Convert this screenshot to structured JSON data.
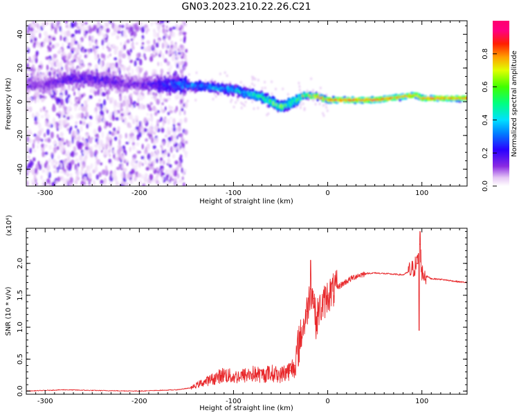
{
  "title": "GN03.2023.210.22.26.C21",
  "colorbar": {
    "label": "Normalized spectral amplitude",
    "ticks": [
      "0.0",
      "0.2",
      "0.4",
      "0.6",
      "0.8"
    ],
    "tick_values": [
      0.0,
      0.2,
      0.4,
      0.6,
      0.8
    ],
    "range": [
      0,
      1
    ],
    "colormap": "rainbow (white-purple-blue-cyan-green-yellow-red-magenta)"
  },
  "chart_data": [
    {
      "type": "heatmap",
      "xlabel": "Height of straight line (km)",
      "ylabel": "Frequency (Hz)",
      "xlim": [
        -320,
        148
      ],
      "ylim": [
        -50,
        48
      ],
      "x_ticks": [
        -300,
        -200,
        -100,
        0,
        100
      ],
      "x_tick_labels": [
        "-300",
        "-200",
        "-100",
        "0",
        "100"
      ],
      "y_ticks": [
        -40,
        -20,
        0,
        20,
        40
      ],
      "y_tick_labels": [
        "-40",
        "-20",
        "0",
        "20",
        "40"
      ],
      "ridge": {
        "description_points_x": [
          -300,
          -270,
          -240,
          -200,
          -160,
          -130,
          -100,
          -70,
          -50,
          -35,
          -25,
          -10,
          0,
          50,
          80,
          95,
          100,
          148
        ],
        "frequency_hz": [
          10,
          14,
          13,
          10,
          10,
          9,
          7,
          3,
          -3,
          0,
          4,
          3,
          1,
          1,
          3,
          4,
          2,
          2
        ],
        "peak_amplitude": [
          0.15,
          0.2,
          0.2,
          0.15,
          0.35,
          0.4,
          0.45,
          0.55,
          0.7,
          0.6,
          0.8,
          0.85,
          0.9,
          0.9,
          0.85,
          0.8,
          0.85,
          0.85
        ]
      }
    },
    {
      "type": "line",
      "xlabel": "Height of straight line (km)",
      "ylabel": "SNR (10 * v/v)",
      "y_multiplier": "(x10⁴)",
      "xlim": [
        -320,
        148
      ],
      "ylim": [
        -0.05,
        2.55
      ],
      "x_ticks": [
        -300,
        -200,
        -100,
        0,
        100
      ],
      "x_tick_labels": [
        "-300",
        "-200",
        "-100",
        "0",
        "100"
      ],
      "y_ticks": [
        0.0,
        0.5,
        1.0,
        1.5,
        2.0
      ],
      "y_tick_labels": [
        "0.0",
        "0.5",
        "1.0",
        "1.5",
        "2.0"
      ],
      "color": "#e8282b",
      "x": [
        -320,
        -300,
        -280,
        -250,
        -200,
        -160,
        -145,
        -135,
        -120,
        -110,
        -100,
        -90,
        -80,
        -70,
        -60,
        -50,
        -45,
        -40,
        -35,
        -30,
        -25,
        -22,
        -18,
        -15,
        -12,
        -10,
        -5,
        0,
        10,
        20,
        30,
        40,
        50,
        60,
        70,
        80,
        90,
        95,
        98,
        100,
        105,
        110,
        120,
        130,
        140,
        148
      ],
      "y": [
        0.0,
        0.01,
        0.02,
        0.01,
        0.0,
        0.02,
        0.05,
        0.12,
        0.2,
        0.26,
        0.22,
        0.24,
        0.27,
        0.25,
        0.28,
        0.25,
        0.3,
        0.32,
        0.4,
        0.8,
        1.05,
        1.25,
        1.6,
        1.45,
        1.05,
        1.25,
        1.35,
        1.5,
        1.62,
        1.72,
        1.8,
        1.84,
        1.85,
        1.84,
        1.83,
        1.82,
        1.9,
        2.0,
        2.3,
        1.85,
        1.8,
        1.76,
        1.75,
        1.73,
        1.71,
        1.7
      ]
    }
  ]
}
